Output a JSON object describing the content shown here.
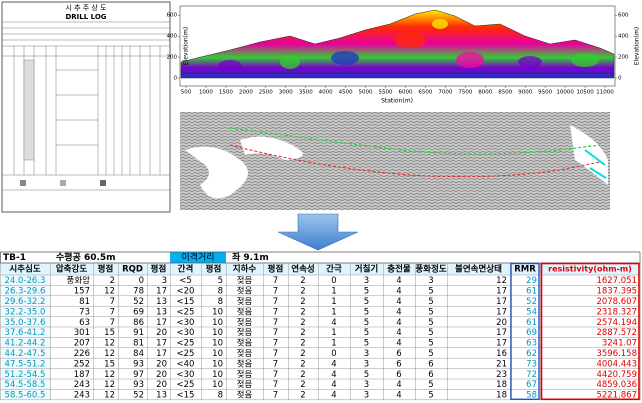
{
  "drill_log": {
    "title": "시 추 주 상 도",
    "subtitle": "DRILL LOG"
  },
  "profile": {
    "ylabel": "Elevation(m)",
    "xlabel": "Station(m)",
    "xlim": [
      350,
      11250
    ],
    "ylim": [
      0,
      650
    ],
    "xticks": [
      500,
      1000,
      1500,
      2000,
      2500,
      3000,
      3500,
      4000,
      4500,
      5000,
      5500,
      6000,
      6500,
      7000,
      7500,
      8000,
      8500,
      9000,
      9500,
      10000,
      10500,
      11000
    ],
    "yticks": [
      0,
      200,
      400,
      600
    ]
  },
  "table": {
    "title": "TB-1",
    "length": "수평공 60.5m",
    "offset_label": "이격거리",
    "offset_value": "좌 9.1m",
    "columns": [
      "시추심도",
      "압축강도",
      "평점",
      "RQD",
      "평점",
      "간격",
      "평점",
      "지하수",
      "평점",
      "연속성",
      "간극",
      "거칠기",
      "충전물",
      "풍화정도",
      "불연속면상태",
      "RMR",
      "resistivity(ohm-m)"
    ],
    "rows": [
      [
        "24.0-26.3",
        "풍화암",
        "2",
        "0",
        "3",
        "<5",
        "5",
        "젖음",
        "7",
        "2",
        "0",
        "3",
        "4",
        "3",
        "12",
        "29",
        "1627.051"
      ],
      [
        "26.3-29.6",
        "157",
        "12",
        "78",
        "17",
        "<20",
        "8",
        "젖음",
        "7",
        "2",
        "1",
        "5",
        "4",
        "5",
        "17",
        "61",
        "1837.395"
      ],
      [
        "29.6-32.2",
        "81",
        "7",
        "52",
        "13",
        "<15",
        "8",
        "젖음",
        "7",
        "2",
        "1",
        "5",
        "4",
        "5",
        "17",
        "52",
        "2078.607"
      ],
      [
        "32.2-35.0",
        "73",
        "7",
        "69",
        "13",
        "<25",
        "10",
        "젖음",
        "7",
        "2",
        "1",
        "5",
        "4",
        "5",
        "17",
        "54",
        "2318.327"
      ],
      [
        "35.0-37.6",
        "63",
        "7",
        "86",
        "17",
        "<30",
        "10",
        "젖음",
        "7",
        "2",
        "4",
        "5",
        "4",
        "5",
        "20",
        "61",
        "2574.194"
      ],
      [
        "37.6-41.2",
        "301",
        "15",
        "91",
        "20",
        "<30",
        "10",
        "젖음",
        "7",
        "2",
        "1",
        "5",
        "4",
        "5",
        "17",
        "69",
        "2887.572"
      ],
      [
        "41.2-44.2",
        "207",
        "12",
        "81",
        "17",
        "<25",
        "10",
        "젖음",
        "7",
        "2",
        "1",
        "5",
        "4",
        "5",
        "17",
        "63",
        "3241.07"
      ],
      [
        "44.2-47.5",
        "226",
        "12",
        "84",
        "17",
        "<25",
        "10",
        "젖음",
        "7",
        "2",
        "0",
        "3",
        "6",
        "5",
        "16",
        "62",
        "3596.158"
      ],
      [
        "47.5-51.2",
        "252",
        "15",
        "93",
        "20",
        "<40",
        "10",
        "젖음",
        "7",
        "2",
        "4",
        "3",
        "6",
        "6",
        "21",
        "73",
        "4004.443"
      ],
      [
        "51.2-54.5",
        "187",
        "12",
        "97",
        "20",
        "<30",
        "10",
        "젖음",
        "7",
        "2",
        "4",
        "5",
        "6",
        "6",
        "23",
        "72",
        "4420.759"
      ],
      [
        "54.5-58.5",
        "243",
        "12",
        "93",
        "20",
        "<25",
        "10",
        "젖음",
        "7",
        "2",
        "4",
        "3",
        "4",
        "5",
        "18",
        "67",
        "4859.036"
      ],
      [
        "58.5-60.5",
        "243",
        "12",
        "52",
        "13",
        "<15",
        "8",
        "젖음",
        "7",
        "2",
        "4",
        "3",
        "4",
        "5",
        "18",
        "58",
        "5221.867"
      ]
    ]
  }
}
